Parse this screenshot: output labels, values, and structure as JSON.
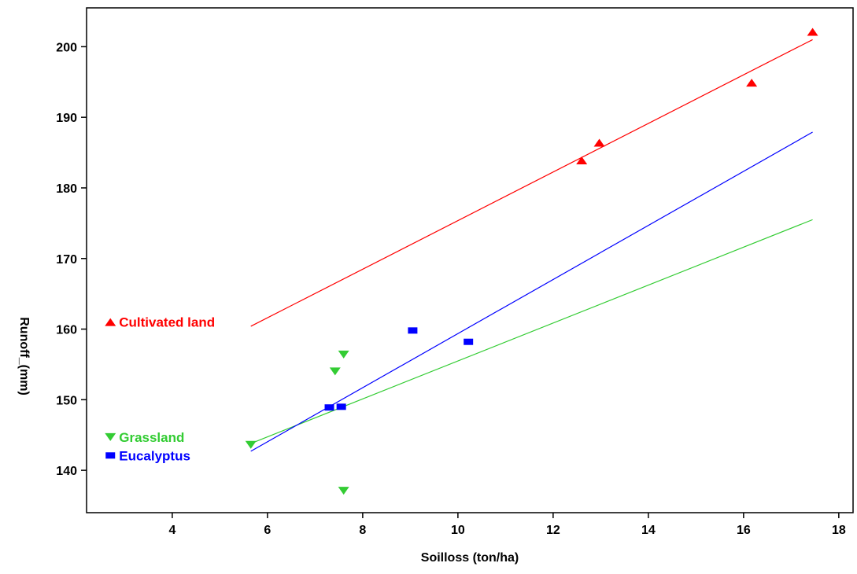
{
  "chart_data": {
    "type": "scatter",
    "title": "",
    "xlabel": "Soilloss (ton/ha)",
    "ylabel": "Runoff_(mm)",
    "xlim": [
      2.2,
      18.3
    ],
    "ylim": [
      134,
      205.5
    ],
    "xticks": [
      4,
      6,
      8,
      10,
      12,
      14,
      16,
      18
    ],
    "yticks": [
      140,
      150,
      160,
      170,
      180,
      190,
      200
    ],
    "grid": false,
    "legend_placement": "inside-left",
    "series": [
      {
        "name": "Cultivated land",
        "color": "#ff0000",
        "marker": "triangle-up",
        "points": [
          {
            "x": 12.6,
            "y": 183.9
          },
          {
            "x": 12.97,
            "y": 186.4
          },
          {
            "x": 16.17,
            "y": 194.9
          },
          {
            "x": 17.45,
            "y": 202.1
          }
        ],
        "fit": {
          "x0": 5.65,
          "y0": 160.4,
          "x1": 17.45,
          "y1": 201.0
        }
      },
      {
        "name": "Grassland",
        "color": "#33cc33",
        "marker": "triangle-down",
        "points": [
          {
            "x": 5.65,
            "y": 143.6
          },
          {
            "x": 7.42,
            "y": 154.0
          },
          {
            "x": 7.6,
            "y": 156.4
          },
          {
            "x": 7.6,
            "y": 137.1
          }
        ],
        "fit": {
          "x0": 5.65,
          "y0": 143.8,
          "x1": 17.45,
          "y1": 175.5
        }
      },
      {
        "name": "Eucalyptus",
        "color": "#0000ff",
        "marker": "square",
        "points": [
          {
            "x": 7.3,
            "y": 148.9
          },
          {
            "x": 7.55,
            "y": 149.0
          },
          {
            "x": 9.05,
            "y": 159.8
          },
          {
            "x": 10.22,
            "y": 158.2
          }
        ],
        "fit": {
          "x0": 5.65,
          "y0": 142.7,
          "x1": 17.45,
          "y1": 187.9
        }
      }
    ],
    "annotations": [
      {
        "text": "Cultivated land",
        "series": 0,
        "x": 2.7,
        "y": 161.0
      },
      {
        "text": "Grassland",
        "series": 1,
        "x": 2.7,
        "y": 144.7
      },
      {
        "text": "Eucalyptus",
        "series": 2,
        "x": 2.7,
        "y": 142.1
      }
    ]
  }
}
